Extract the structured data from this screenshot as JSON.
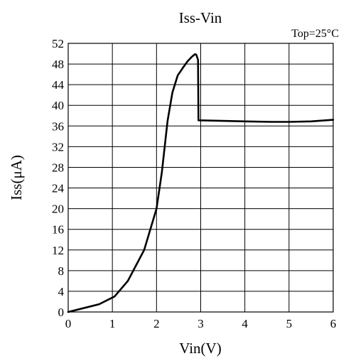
{
  "chart_data": {
    "type": "line",
    "title": "Iss-Vin",
    "annotation": "Top=25°C",
    "xlabel": "Vin(V)",
    "ylabel": "Iss(μA)",
    "xlim": [
      0,
      6
    ],
    "ylim": [
      0,
      52
    ],
    "xticks": [
      0,
      1,
      2,
      3,
      4,
      5,
      6
    ],
    "yticks": [
      0,
      4,
      8,
      12,
      16,
      20,
      24,
      28,
      32,
      36,
      40,
      44,
      48,
      52
    ],
    "grid": true,
    "legend": "none",
    "line_color": "#000000",
    "series": [
      {
        "x": [
          0,
          0.7,
          1.05,
          1.35,
          1.72,
          2.0,
          2.12,
          2.25,
          2.36,
          2.48,
          2.6,
          2.7,
          2.8,
          2.87,
          2.9,
          2.94,
          2.95,
          3.5,
          4.0,
          4.6,
          5.0,
          5.5,
          6.0
        ],
        "y": [
          0,
          1.5,
          3.0,
          6.0,
          12.0,
          20.0,
          27.0,
          37.0,
          42.5,
          45.8,
          47.3,
          48.5,
          49.4,
          49.9,
          49.8,
          48.8,
          37.1,
          37.0,
          36.9,
          36.8,
          36.8,
          36.9,
          37.2
        ]
      }
    ]
  }
}
